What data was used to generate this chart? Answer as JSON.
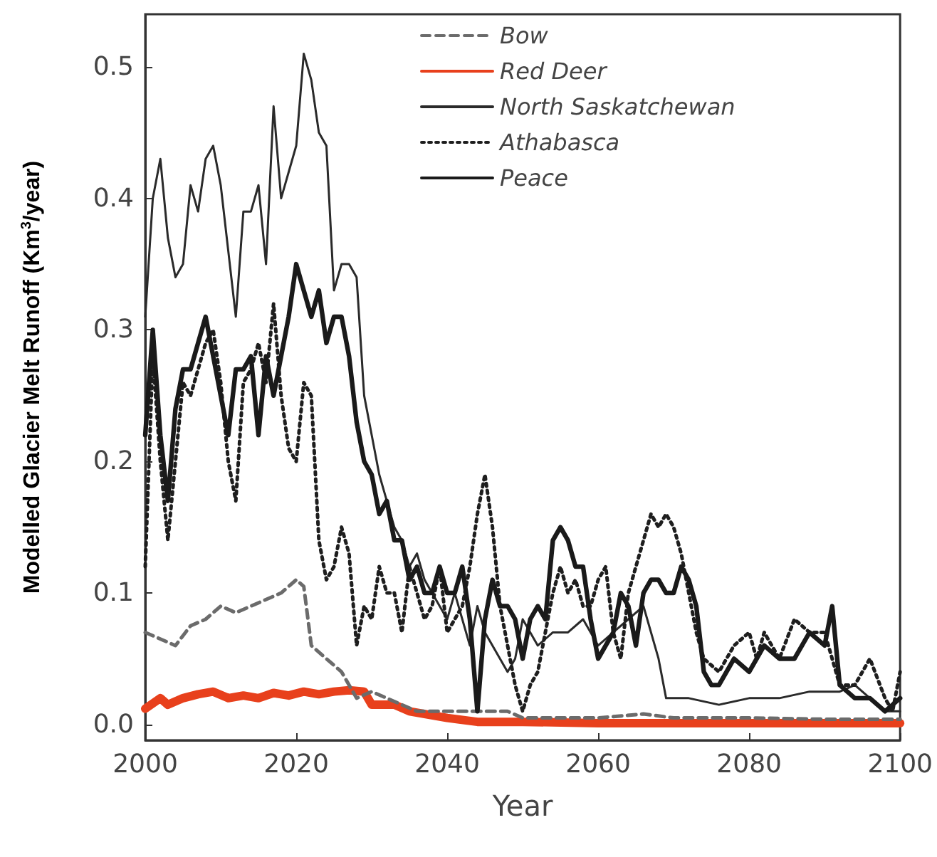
{
  "chart_data": {
    "type": "line",
    "xlabel": "Year",
    "ylabel": "Modelled Glacier Melt Runoff (Km$^{3}$/year)",
    "xlim": [
      2000,
      2100
    ],
    "xticks": [
      2000,
      2020,
      2040,
      2060,
      2080,
      2100
    ],
    "ylim": [
      -0.012,
      0.54
    ],
    "yticks": [
      {
        "value": 0,
        "label": "0.0"
      },
      {
        "value": 0.1,
        "label": "0.1"
      },
      {
        "value": 0.2,
        "label": "0.2"
      },
      {
        "value": 0.3,
        "label": "0.3"
      },
      {
        "value": 0.4,
        "label": "0.4"
      },
      {
        "value": 0.5,
        "label": "0.5"
      }
    ],
    "grid": false,
    "legend": "top",
    "marker": "none",
    "series": [
      {
        "name": "Bow",
        "color": "#6b6b6b",
        "line_style": "dashed",
        "x": [
          2000,
          2002,
          2004,
          2006,
          2008,
          2010,
          2012,
          2014,
          2016,
          2018,
          2020,
          2021,
          2022,
          2024,
          2026,
          2028,
          2030,
          2032,
          2034,
          2036,
          2040,
          2045,
          2048,
          2050,
          2060,
          2066,
          2070,
          2080,
          2090,
          2100
        ],
        "values": [
          0.07,
          0.065,
          0.06,
          0.075,
          0.08,
          0.09,
          0.085,
          0.09,
          0.095,
          0.1,
          0.11,
          0.105,
          0.06,
          0.05,
          0.04,
          0.02,
          0.025,
          0.02,
          0.015,
          0.01,
          0.01,
          0.01,
          0.01,
          0.005,
          0.005,
          0.008,
          0.005,
          0.005,
          0.004,
          0.004
        ]
      },
      {
        "name": "Red Deer",
        "color": "#e8401c",
        "line_style": "solid",
        "x": [
          2000,
          2002,
          2003,
          2005,
          2007,
          2009,
          2011,
          2013,
          2015,
          2017,
          2019,
          2021,
          2023,
          2025,
          2027,
          2029,
          2030,
          2033,
          2035,
          2040,
          2044,
          2050,
          2060,
          2100
        ],
        "values": [
          0.012,
          0.02,
          0.015,
          0.02,
          0.023,
          0.025,
          0.02,
          0.022,
          0.02,
          0.024,
          0.022,
          0.025,
          0.023,
          0.025,
          0.026,
          0.025,
          0.015,
          0.015,
          0.01,
          0.005,
          0.002,
          0.002,
          0.001,
          0.001
        ]
      },
      {
        "name": "North Saskatchewan",
        "color": "#2a2a2a",
        "line_style": "solid",
        "x": [
          2000,
          2001,
          2002,
          2003,
          2004,
          2005,
          2006,
          2007,
          2008,
          2009,
          2010,
          2011,
          2012,
          2013,
          2014,
          2015,
          2016,
          2017,
          2018,
          2019,
          2020,
          2021,
          2022,
          2023,
          2024,
          2025,
          2026,
          2027,
          2028,
          2029,
          2030,
          2031,
          2032,
          2033,
          2034,
          2035,
          2036,
          2037,
          2038,
          2039,
          2040,
          2041,
          2042,
          2043,
          2044,
          2045,
          2046,
          2047,
          2048,
          2049,
          2050,
          2052,
          2054,
          2056,
          2058,
          2060,
          2062,
          2064,
          2066,
          2068,
          2069,
          2072,
          2076,
          2080,
          2084,
          2088,
          2092,
          2094,
          2096,
          2098,
          2100
        ],
        "values": [
          0.31,
          0.4,
          0.43,
          0.37,
          0.34,
          0.35,
          0.41,
          0.39,
          0.43,
          0.44,
          0.41,
          0.36,
          0.31,
          0.39,
          0.39,
          0.41,
          0.35,
          0.47,
          0.4,
          0.42,
          0.44,
          0.51,
          0.49,
          0.45,
          0.44,
          0.33,
          0.35,
          0.35,
          0.34,
          0.25,
          0.22,
          0.19,
          0.17,
          0.15,
          0.14,
          0.12,
          0.13,
          0.11,
          0.1,
          0.09,
          0.08,
          0.1,
          0.08,
          0.06,
          0.09,
          0.07,
          0.06,
          0.05,
          0.04,
          0.05,
          0.08,
          0.06,
          0.07,
          0.07,
          0.08,
          0.06,
          0.07,
          0.08,
          0.09,
          0.05,
          0.02,
          0.02,
          0.015,
          0.02,
          0.02,
          0.025,
          0.025,
          0.03,
          0.02,
          0.01,
          0.01
        ]
      },
      {
        "name": "Athabasca",
        "color": "#1e1e1e",
        "line_style": "dotted",
        "x": [
          2000,
          2001,
          2002,
          2003,
          2004,
          2005,
          2006,
          2007,
          2008,
          2009,
          2010,
          2011,
          2012,
          2013,
          2014,
          2015,
          2016,
          2017,
          2018,
          2019,
          2020,
          2021,
          2022,
          2023,
          2024,
          2025,
          2026,
          2027,
          2028,
          2029,
          2030,
          2031,
          2032,
          2033,
          2034,
          2035,
          2036,
          2037,
          2038,
          2039,
          2040,
          2041,
          2042,
          2043,
          2044,
          2045,
          2046,
          2047,
          2048,
          2049,
          2050,
          2051,
          2052,
          2054,
          2055,
          2056,
          2057,
          2058,
          2059,
          2060,
          2061,
          2062,
          2063,
          2064,
          2065,
          2066,
          2067,
          2068,
          2069,
          2070,
          2071,
          2072,
          2073,
          2074,
          2076,
          2078,
          2080,
          2081,
          2082,
          2084,
          2086,
          2088,
          2090,
          2092,
          2094,
          2096,
          2098,
          2099,
          2100
        ],
        "values": [
          0.12,
          0.28,
          0.2,
          0.14,
          0.2,
          0.26,
          0.25,
          0.27,
          0.29,
          0.3,
          0.26,
          0.2,
          0.17,
          0.26,
          0.27,
          0.29,
          0.26,
          0.32,
          0.25,
          0.21,
          0.2,
          0.26,
          0.25,
          0.14,
          0.11,
          0.12,
          0.15,
          0.13,
          0.06,
          0.09,
          0.08,
          0.12,
          0.1,
          0.1,
          0.07,
          0.12,
          0.1,
          0.08,
          0.09,
          0.12,
          0.07,
          0.08,
          0.09,
          0.12,
          0.16,
          0.19,
          0.15,
          0.09,
          0.06,
          0.03,
          0.01,
          0.03,
          0.04,
          0.1,
          0.12,
          0.1,
          0.11,
          0.09,
          0.09,
          0.11,
          0.12,
          0.07,
          0.05,
          0.1,
          0.12,
          0.14,
          0.16,
          0.15,
          0.16,
          0.15,
          0.13,
          0.1,
          0.07,
          0.05,
          0.04,
          0.06,
          0.07,
          0.05,
          0.07,
          0.05,
          0.08,
          0.07,
          0.07,
          0.03,
          0.03,
          0.05,
          0.02,
          0.01,
          0.04
        ]
      },
      {
        "name": "Peace",
        "color": "#1a1a1a",
        "line_style": "solid",
        "x": [
          2000,
          2001,
          2002,
          2003,
          2004,
          2005,
          2006,
          2007,
          2008,
          2009,
          2010,
          2011,
          2012,
          2013,
          2014,
          2015,
          2016,
          2017,
          2018,
          2019,
          2020,
          2021,
          2022,
          2023,
          2024,
          2025,
          2026,
          2027,
          2028,
          2029,
          2030,
          2031,
          2032,
          2033,
          2034,
          2035,
          2036,
          2037,
          2038,
          2039,
          2040,
          2041,
          2042,
          2043,
          2044,
          2045,
          2046,
          2047,
          2048,
          2049,
          2050,
          2051,
          2052,
          2053,
          2054,
          2055,
          2056,
          2057,
          2058,
          2059,
          2060,
          2061,
          2062,
          2063,
          2064,
          2065,
          2066,
          2067,
          2068,
          2069,
          2070,
          2071,
          2072,
          2073,
          2074,
          2075,
          2076,
          2078,
          2080,
          2082,
          2084,
          2086,
          2088,
          2090,
          2091,
          2092,
          2094,
          2096,
          2098,
          2100
        ],
        "values": [
          0.22,
          0.3,
          0.22,
          0.17,
          0.24,
          0.27,
          0.27,
          0.29,
          0.31,
          0.28,
          0.25,
          0.22,
          0.27,
          0.27,
          0.28,
          0.22,
          0.28,
          0.25,
          0.28,
          0.31,
          0.35,
          0.33,
          0.31,
          0.33,
          0.29,
          0.31,
          0.31,
          0.28,
          0.23,
          0.2,
          0.19,
          0.16,
          0.17,
          0.14,
          0.14,
          0.11,
          0.12,
          0.1,
          0.1,
          0.12,
          0.1,
          0.1,
          0.12,
          0.08,
          0.01,
          0.08,
          0.11,
          0.09,
          0.09,
          0.08,
          0.05,
          0.08,
          0.09,
          0.08,
          0.14,
          0.15,
          0.14,
          0.12,
          0.12,
          0.08,
          0.05,
          0.06,
          0.07,
          0.1,
          0.09,
          0.06,
          0.1,
          0.11,
          0.11,
          0.1,
          0.1,
          0.12,
          0.11,
          0.09,
          0.04,
          0.03,
          0.03,
          0.05,
          0.04,
          0.06,
          0.05,
          0.05,
          0.07,
          0.06,
          0.09,
          0.03,
          0.02,
          0.02,
          0.01,
          0.02
        ]
      }
    ]
  }
}
